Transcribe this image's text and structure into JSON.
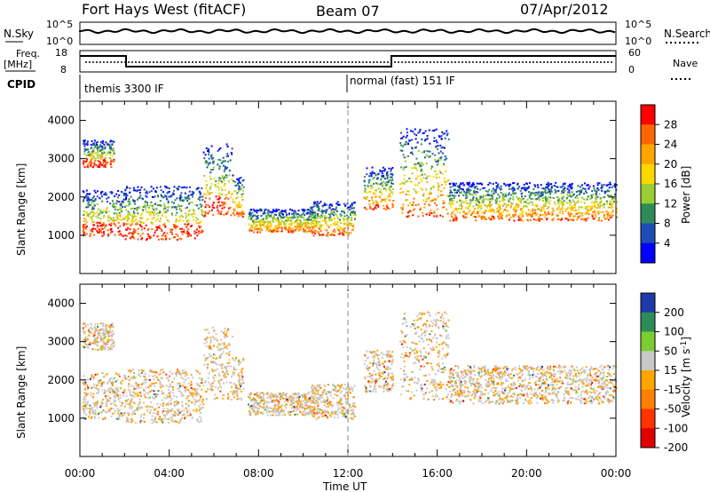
{
  "header": {
    "station": "Fort Hays West (fitACF)",
    "beam": "Beam 07",
    "date": "07/Apr/2012"
  },
  "top_panels": {
    "nsky_label": "N.Sky",
    "nsearch_label": "N.Search",
    "freq_label_1": "Freq.",
    "freq_label_2": "[MHz]",
    "nave_label": "Nave",
    "cpid_label": "CPID",
    "nsky_ticks": [
      "10^5",
      "10^0"
    ],
    "nsearch_ticks": [
      "10^5",
      "10^0"
    ],
    "freq_ticks": [
      "18",
      "8"
    ],
    "nave_ticks": [
      "60",
      "0"
    ],
    "cpid_mode_1": "themis 3300 IF",
    "cpid_mode_2": "normal (fast) 151 IF"
  },
  "chart_data": [
    {
      "type": "heatmap",
      "title": "",
      "xlabel": "",
      "ylabel": "Slant Range [km]",
      "x_ticks": [
        "00:00",
        "04:00",
        "08:00",
        "12:00",
        "16:00",
        "20:00",
        "00:00"
      ],
      "xlim_hours": [
        0,
        24
      ],
      "ylim": [
        0,
        4500
      ],
      "y_ticks": [
        1000,
        2000,
        3000,
        4000
      ],
      "colorbar": {
        "label": "Power [dB]",
        "ticks": [
          "28",
          "24",
          "20",
          "16",
          "12",
          "8",
          "4"
        ],
        "colors": [
          "#ff0000",
          "#ff6600",
          "#ffa500",
          "#ffd700",
          "#9acd32",
          "#2e8b57",
          "#1e4db5",
          "#0000ff"
        ]
      }
    },
    {
      "type": "heatmap",
      "title": "",
      "xlabel": "Time UT",
      "ylabel": "Slant Range [km]",
      "x_ticks": [
        "00:00",
        "04:00",
        "08:00",
        "12:00",
        "16:00",
        "20:00",
        "00:00"
      ],
      "xlim_hours": [
        0,
        24
      ],
      "ylim": [
        0,
        4500
      ],
      "y_ticks": [
        1000,
        2000,
        3000,
        4000
      ],
      "colorbar": {
        "label": "Velocity [m s^-1]",
        "ticks": [
          "200",
          "100",
          "50",
          "15",
          "-15",
          "-50",
          "-100",
          "-200"
        ],
        "colors": [
          "#1e3aa8",
          "#2e8b57",
          "#7ccd32",
          "#c8c8c8",
          "#ffa500",
          "#ff7f00",
          "#ff3300",
          "#e00000"
        ]
      }
    }
  ],
  "time_axis_label": "Time UT"
}
